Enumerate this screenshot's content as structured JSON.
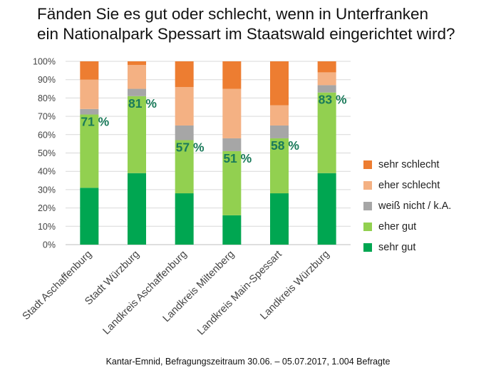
{
  "title_lines": [
    "Fänden Sie es gut oder schlecht, wenn in Unterfranken",
    "ein Nationalpark Spessart im Staatswald eingerichtet wird?"
  ],
  "footer": "Kantar-Emnid, Befragungszeitraum 30.06. – 05.07.2017, 1.004 Befragte",
  "colors": {
    "sehr_gut": "#00a651",
    "eher_gut": "#92d050",
    "weiss_nicht": "#a6a6a6",
    "eher_schlecht": "#f4b183",
    "sehr_schlecht": "#ed7d31",
    "annotation": "#1a7a5a",
    "gridline": "#d9d9d9"
  },
  "legend": [
    {
      "key": "sehr_schlecht",
      "label": "sehr schlecht"
    },
    {
      "key": "eher_schlecht",
      "label": "eher schlecht"
    },
    {
      "key": "weiss_nicht",
      "label": "weiß nicht / k.A."
    },
    {
      "key": "eher_gut",
      "label": "eher gut"
    },
    {
      "key": "sehr_gut",
      "label": "sehr gut"
    }
  ],
  "chart_data": {
    "type": "bar",
    "stacked": true,
    "title": "Fänden Sie es gut oder schlecht, wenn in Unterfranken ein Nationalpark Spessart im Staatswald eingerichtet wird?",
    "xlabel": "",
    "ylabel": "",
    "ylim": [
      0,
      100
    ],
    "yticks": [
      "0%",
      "10%",
      "20%",
      "30%",
      "40%",
      "50%",
      "60%",
      "70%",
      "80%",
      "90%",
      "100%"
    ],
    "grid": true,
    "legend_position": "right",
    "categories": [
      "Stadt Aschaffenburg",
      "Stadt Würzburg",
      "Landkreis Aschaffenburg",
      "Landkreis Miltenberg",
      "Landkreis Main-Spessart",
      "Landkreis Würzburg"
    ],
    "series": [
      {
        "key": "sehr_gut",
        "name": "sehr gut",
        "values": [
          31,
          39,
          28,
          16,
          28,
          39
        ]
      },
      {
        "key": "eher_gut",
        "name": "eher gut",
        "values": [
          40,
          42,
          29,
          35,
          30,
          44
        ]
      },
      {
        "key": "weiss_nicht",
        "name": "weiß nicht / k.A.",
        "values": [
          3,
          4,
          8,
          7,
          7,
          4
        ]
      },
      {
        "key": "eher_schlecht",
        "name": "eher schlecht",
        "values": [
          16,
          13,
          21,
          27,
          11,
          7
        ]
      },
      {
        "key": "sehr_schlecht",
        "name": "sehr schlecht",
        "values": [
          10,
          2,
          14,
          15,
          24,
          6
        ]
      }
    ],
    "annotations": [
      "71 %",
      "81 %",
      "57 %",
      "51 %",
      "58 %",
      "83 %"
    ]
  }
}
